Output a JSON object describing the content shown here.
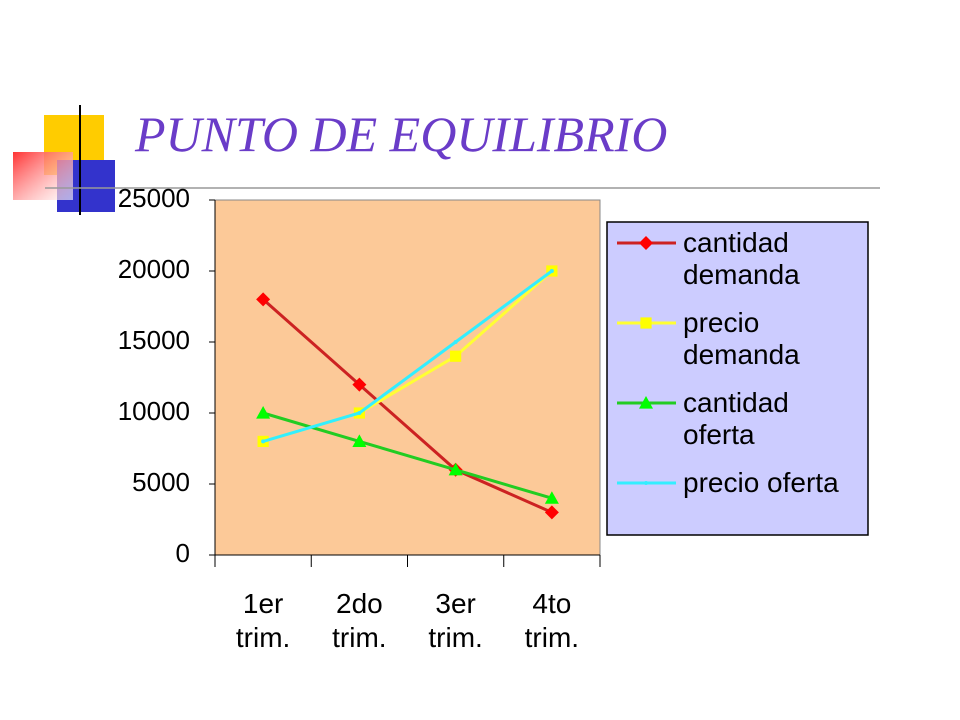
{
  "chart_data": {
    "type": "line",
    "title": "PUNTO DE EQUILIBRIO",
    "categories": [
      "1er trim.",
      "2do trim.",
      "3er trim.",
      "4to trim."
    ],
    "series": [
      {
        "name": "cantidad demanda",
        "color": "#cc2222",
        "marker_color": "#ff0000",
        "marker": "diamond",
        "values": [
          18000,
          12000,
          6000,
          3000
        ]
      },
      {
        "name": "precio demanda",
        "color": "#ffff33",
        "marker_color": "#ffff00",
        "marker": "square",
        "values": [
          8000,
          10000,
          14000,
          20000
        ]
      },
      {
        "name": "cantidad oferta",
        "color": "#22cc22",
        "marker_color": "#00ff00",
        "marker": "triangle",
        "values": [
          10000,
          8000,
          6000,
          4000
        ]
      },
      {
        "name": "precio oferta",
        "color": "#33eeff",
        "marker_color": "#33eeff",
        "marker": "none",
        "values": [
          8000,
          10000,
          15000,
          20000
        ]
      }
    ],
    "ylim": [
      0,
      25000
    ],
    "yticks": [
      0,
      5000,
      10000,
      15000,
      20000,
      25000
    ],
    "plot_background": "#fcc998",
    "legend_background": "#ccccff",
    "legend": "right"
  }
}
